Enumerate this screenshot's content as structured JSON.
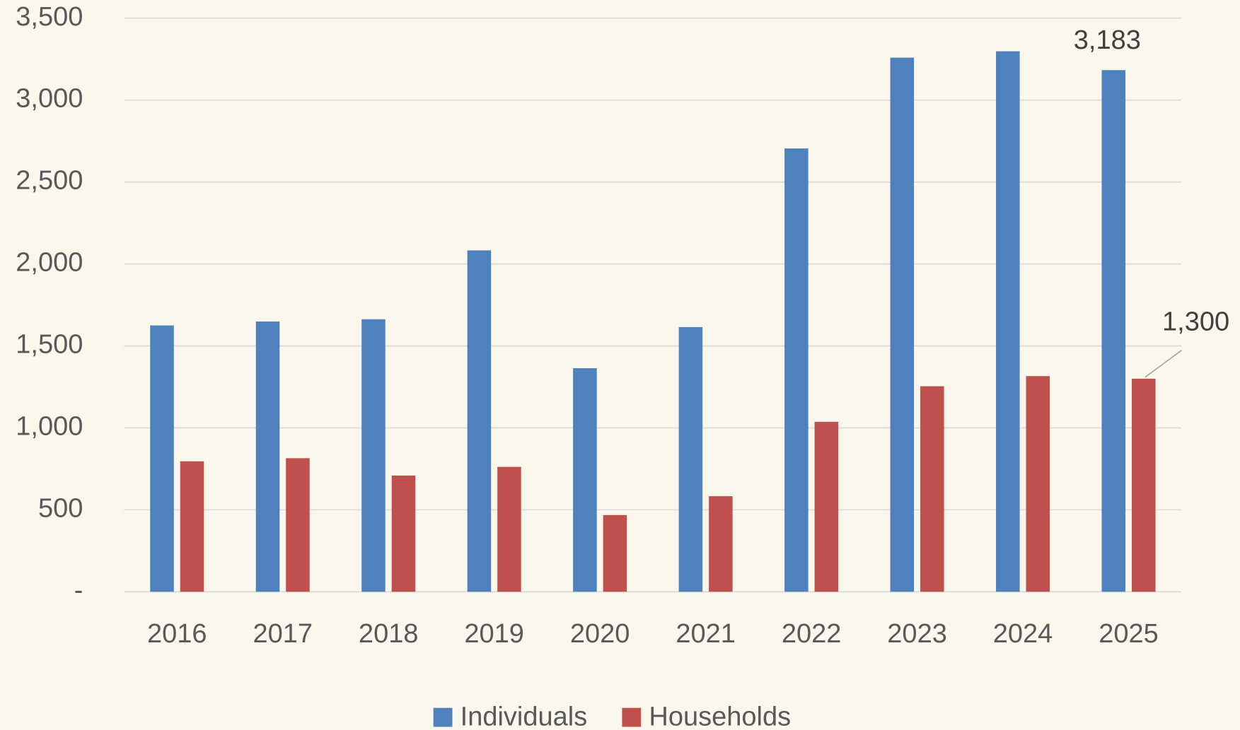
{
  "chart_data": {
    "type": "bar",
    "categories": [
      "2016",
      "2017",
      "2018",
      "2019",
      "2020",
      "2021",
      "2022",
      "2023",
      "2024",
      "2025"
    ],
    "series": [
      {
        "name": "Individuals",
        "color": "#4f81bd",
        "values": [
          1625,
          1649,
          1663,
          2083,
          1364,
          1615,
          2705,
          3259,
          3298,
          3183
        ],
        "value_labels": [
          null,
          null,
          null,
          null,
          null,
          null,
          null,
          null,
          null,
          "3,183"
        ]
      },
      {
        "name": "Households",
        "color": "#c0504d",
        "values": [
          796,
          815,
          709,
          762,
          468,
          583,
          1037,
          1254,
          1316,
          1300
        ],
        "value_labels": [
          null,
          null,
          null,
          null,
          null,
          null,
          null,
          null,
          null,
          "1,300"
        ]
      }
    ],
    "ylim": [
      0,
      3500
    ],
    "yticks": [
      {
        "value": 0,
        "label": "-"
      },
      500,
      {
        "value": 1000,
        "label": "1,000"
      },
      {
        "value": 1500,
        "label": "1,500"
      },
      {
        "value": 2000,
        "label": "2,000"
      },
      {
        "value": 2500,
        "label": "2,500"
      },
      {
        "value": 3000,
        "label": "3,000"
      },
      {
        "value": 3500,
        "label": "3,500"
      }
    ],
    "grid": true,
    "legend": "bottom"
  }
}
